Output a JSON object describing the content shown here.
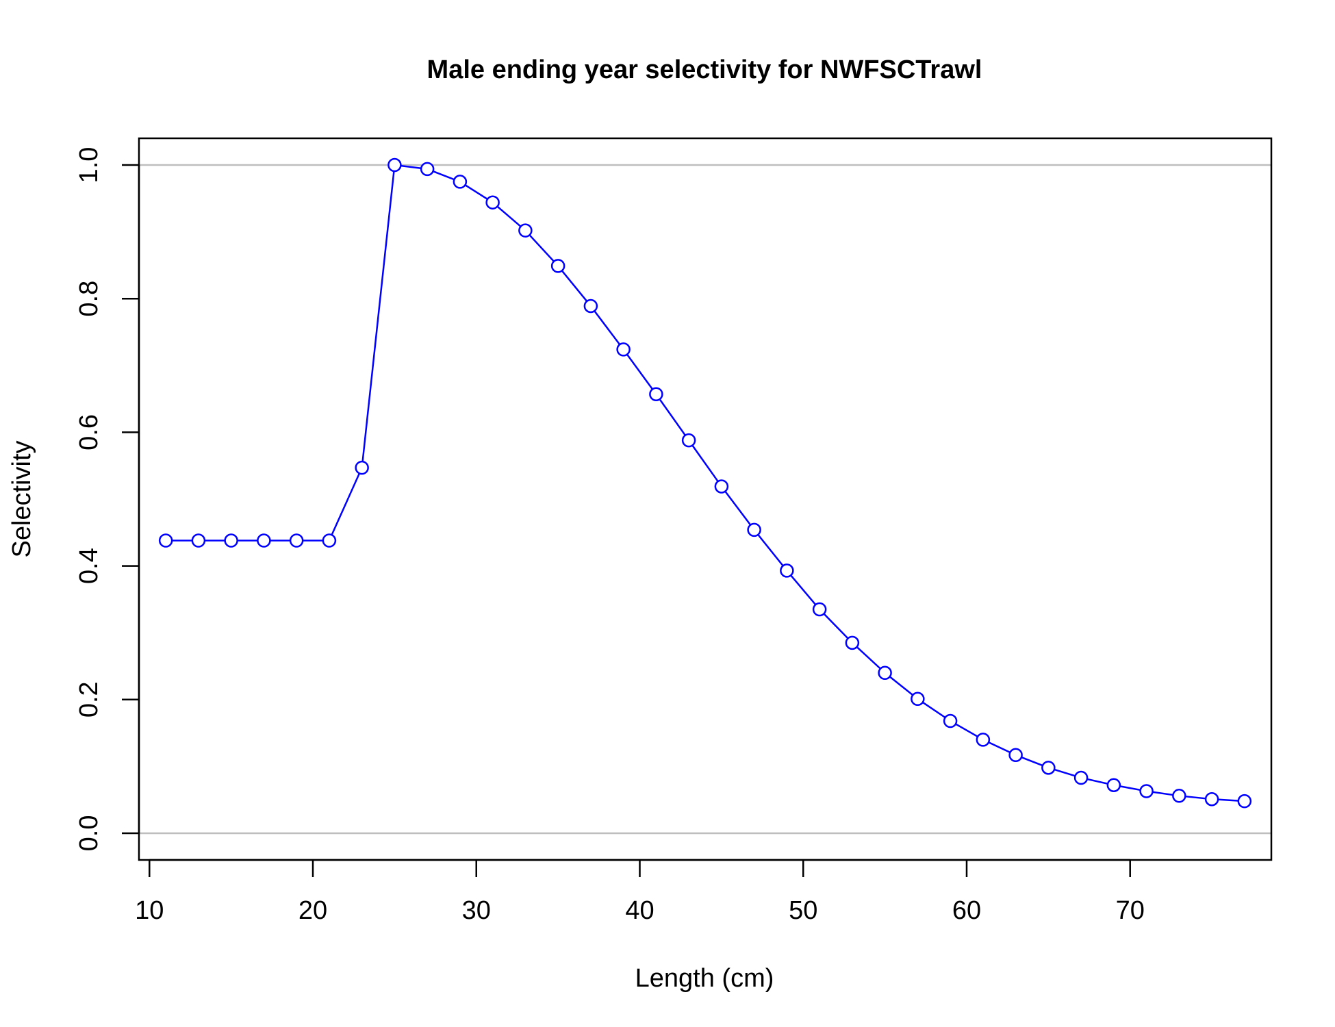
{
  "chart_data": {
    "type": "line",
    "title": "Male ending year selectivity for NWFSCTrawl",
    "xlabel": "Length (cm)",
    "ylabel": "Selectivity",
    "xlim": [
      9.36,
      78.64
    ],
    "ylim": [
      -0.04,
      1.04
    ],
    "x_ticks": [
      10,
      20,
      30,
      40,
      50,
      60,
      70
    ],
    "y_ticks": [
      0.0,
      0.2,
      0.4,
      0.6,
      0.8,
      1.0
    ],
    "x_tick_labels": [
      "10",
      "20",
      "30",
      "40",
      "50",
      "60",
      "70"
    ],
    "y_tick_labels": [
      "0.0",
      "0.2",
      "0.4",
      "0.6",
      "0.8",
      "1.0"
    ],
    "reference_lines": [
      0,
      1
    ],
    "grid": false,
    "marker": "open-circle",
    "colors": {
      "series": "#0000ff",
      "reference": "#bebebe",
      "axes": "#000000"
    },
    "series": [
      {
        "x": [
          11,
          13,
          15,
          17,
          19,
          21,
          23,
          25,
          27,
          29,
          31,
          33,
          35,
          37,
          39,
          41,
          43,
          45,
          47,
          49,
          51,
          53,
          55,
          57,
          59,
          61,
          63,
          65,
          67,
          69,
          71,
          73,
          75,
          77
        ],
        "values": [
          0.438,
          0.438,
          0.438,
          0.438,
          0.438,
          0.438,
          0.547,
          1.0,
          0.994,
          0.975,
          0.944,
          0.902,
          0.849,
          0.789,
          0.724,
          0.657,
          0.588,
          0.519,
          0.454,
          0.393,
          0.335,
          0.285,
          0.24,
          0.201,
          0.168,
          0.14,
          0.117,
          0.098,
          0.083,
          0.072,
          0.063,
          0.056,
          0.051,
          0.048
        ]
      }
    ]
  }
}
